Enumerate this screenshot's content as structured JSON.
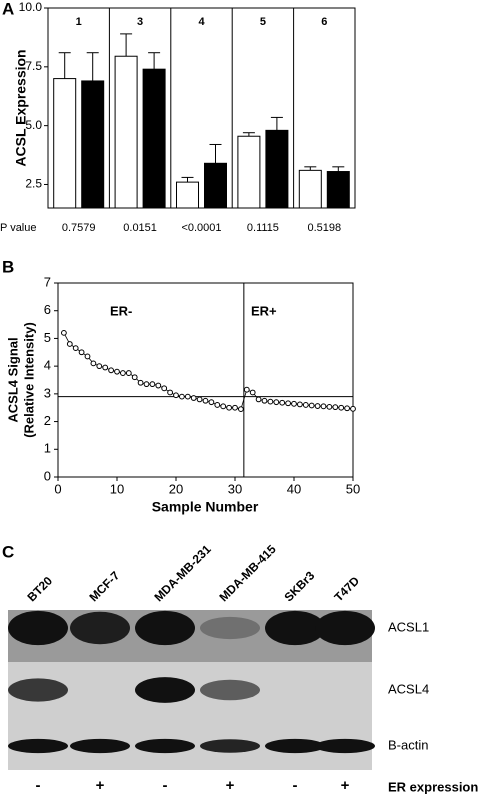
{
  "chart_data": [
    {
      "type": "bar",
      "panel": "A",
      "ylabel": "ACSL Expression",
      "categories": [
        "1",
        "3",
        "4",
        "5",
        "6"
      ],
      "series": [
        {
          "color": "#ffffff",
          "values": [
            7.0,
            7.95,
            2.6,
            4.55,
            3.1
          ],
          "errors": [
            1.1,
            0.95,
            0.2,
            0.15,
            0.15
          ]
        },
        {
          "color": "#000000",
          "values": [
            6.9,
            7.4,
            3.4,
            4.8,
            3.05
          ],
          "errors": [
            1.2,
            0.7,
            0.8,
            0.55,
            0.2
          ]
        }
      ],
      "pvalue_label": "P value",
      "pvalues": [
        "0.7579",
        "0.0151",
        "<0.0001",
        "0.1115",
        "0.5198"
      ],
      "ylim": [
        1.5,
        10
      ],
      "yticks": [
        {
          "value": 2.5,
          "label": "2.5"
        },
        {
          "value": 5,
          "label": "5.0"
        },
        {
          "value": 7.5,
          "label": "7.5"
        },
        {
          "value": 10,
          "label": "10.0"
        }
      ]
    },
    {
      "type": "line",
      "panel": "B",
      "ylabel": [
        "ACSL4 Signal",
        "(Relative Intensity)"
      ],
      "xlabel": "Sample Number",
      "annotations": [
        "ER-",
        "ER+"
      ],
      "vline": 31.5,
      "hline": 2.9,
      "x": [
        1,
        2,
        3,
        4,
        5,
        6,
        7,
        8,
        9,
        10,
        11,
        12,
        13,
        14,
        15,
        16,
        17,
        18,
        19,
        20,
        21,
        22,
        23,
        24,
        25,
        26,
        27,
        28,
        29,
        30,
        31,
        32,
        33,
        34,
        35,
        36,
        37,
        38,
        39,
        40,
        41,
        42,
        43,
        44,
        45,
        46,
        47,
        48,
        49,
        50
      ],
      "values": [
        5.2,
        4.8,
        4.65,
        4.5,
        4.35,
        4.1,
        4.0,
        3.95,
        3.85,
        3.8,
        3.75,
        3.75,
        3.6,
        3.4,
        3.35,
        3.35,
        3.3,
        3.2,
        3.05,
        2.95,
        2.9,
        2.9,
        2.85,
        2.8,
        2.75,
        2.7,
        2.6,
        2.55,
        2.5,
        2.5,
        2.45,
        3.15,
        3.05,
        2.8,
        2.75,
        2.72,
        2.7,
        2.68,
        2.66,
        2.64,
        2.62,
        2.6,
        2.58,
        2.56,
        2.55,
        2.53,
        2.52,
        2.5,
        2.48,
        2.46
      ],
      "xlim": [
        0,
        50
      ],
      "ylim": [
        0,
        7
      ],
      "xticks": [
        0,
        10,
        20,
        30,
        40,
        50
      ],
      "yticks": [
        0,
        1,
        2,
        3,
        4,
        5,
        6,
        7
      ]
    }
  ],
  "blot": {
    "panel": "C",
    "lanes": [
      "BT20",
      "MCF-7",
      "MDA-MB-231",
      "MDA-MB-415",
      "SKBr3",
      "T47D"
    ],
    "bands": [
      "ACSL1",
      "ACSL4",
      "B-actin"
    ],
    "er": [
      "-",
      "+",
      "-",
      "+",
      "-",
      "+"
    ],
    "er_label": "ER expression"
  }
}
